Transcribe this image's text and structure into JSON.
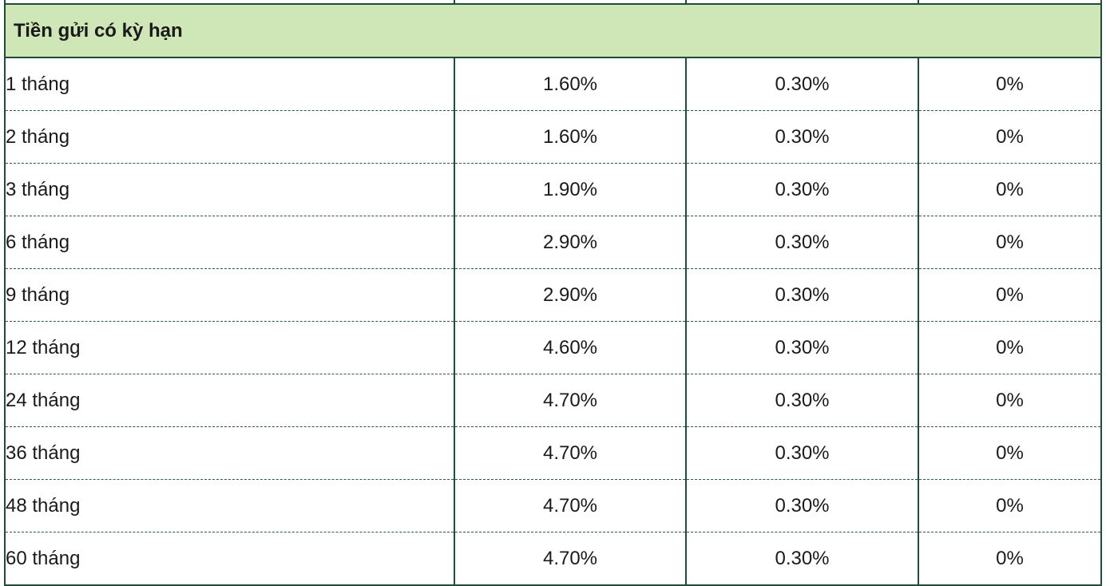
{
  "table": {
    "section_title": "Tiền gửi có kỳ hạn",
    "rows": [
      {
        "term": "1 tháng",
        "rate_a": "1.60%",
        "rate_b": "0.30%",
        "rate_c": "0%"
      },
      {
        "term": "2 tháng",
        "rate_a": "1.60%",
        "rate_b": "0.30%",
        "rate_c": "0%"
      },
      {
        "term": "3 tháng",
        "rate_a": "1.90%",
        "rate_b": "0.30%",
        "rate_c": "0%"
      },
      {
        "term": "6 tháng",
        "rate_a": "2.90%",
        "rate_b": "0.30%",
        "rate_c": "0%"
      },
      {
        "term": "9 tháng",
        "rate_a": "2.90%",
        "rate_b": "0.30%",
        "rate_c": "0%"
      },
      {
        "term": "12 tháng",
        "rate_a": "4.60%",
        "rate_b": "0.30%",
        "rate_c": "0%"
      },
      {
        "term": "24 tháng",
        "rate_a": "4.70%",
        "rate_b": "0.30%",
        "rate_c": "0%"
      },
      {
        "term": "36 tháng",
        "rate_a": "4.70%",
        "rate_b": "0.30%",
        "rate_c": "0%"
      },
      {
        "term": "48 tháng",
        "rate_a": "4.70%",
        "rate_b": "0.30%",
        "rate_c": "0%"
      },
      {
        "term": "60 tháng",
        "rate_a": "4.70%",
        "rate_b": "0.30%",
        "rate_c": "0%"
      }
    ]
  },
  "colors": {
    "section_bg": "#cfe6b6",
    "border": "#1f4d3a"
  }
}
